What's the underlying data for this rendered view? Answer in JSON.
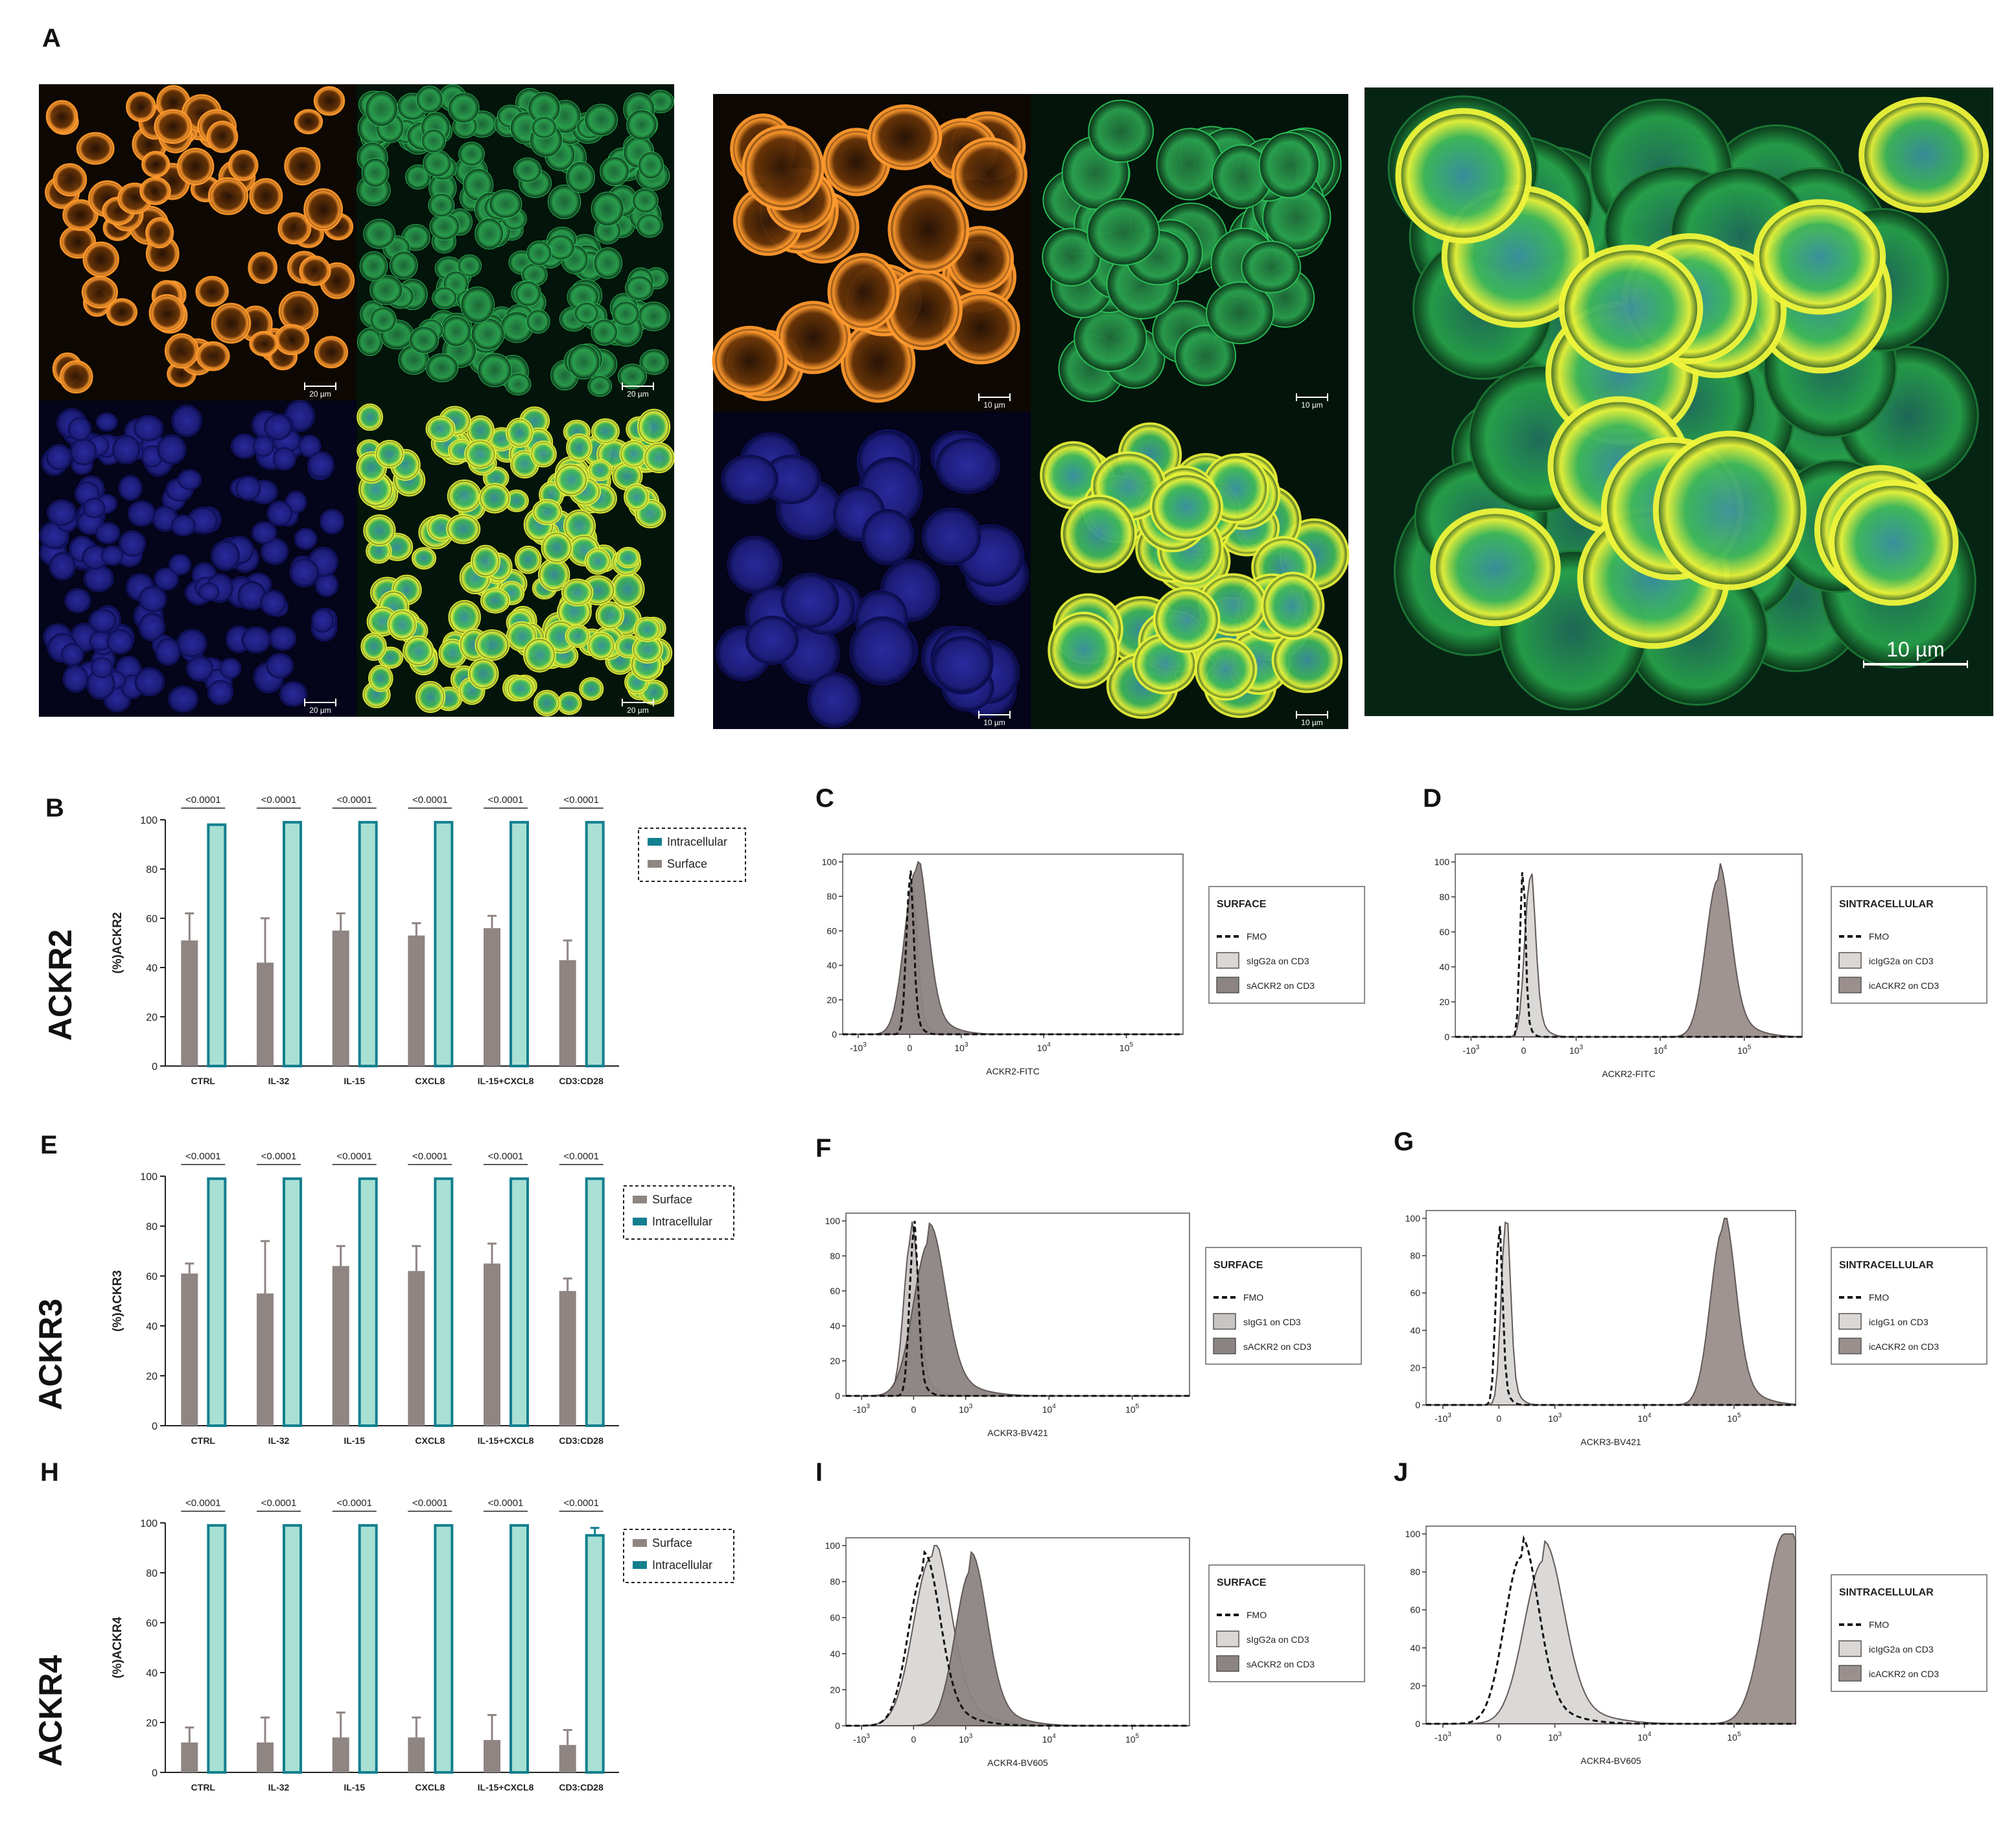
{
  "panel_a": {
    "label": "A",
    "scale_bars": {
      "group1": [
        "20 µm",
        "20 µm",
        "20 µm",
        "20 µm"
      ],
      "group2": [
        "10 µm",
        "10 µm",
        "10 µm",
        "10 µm"
      ],
      "zoom": "10 µm"
    }
  },
  "chart_data": [
    {
      "id": "B",
      "type": "bar",
      "row_label": "ACKR2",
      "ylabel": "(%)ACKR2",
      "categories": [
        "CTRL",
        "IL-32",
        "IL-15",
        "CXCL8",
        "IL-15+CXCL8",
        "CD3:CD28"
      ],
      "ylim": [
        0,
        100
      ],
      "yticks": [
        0,
        20,
        40,
        60,
        80,
        100
      ],
      "legend": [
        "Intracellular",
        "Surface"
      ],
      "series": [
        {
          "name": "Surface",
          "color": "#8f8583",
          "values": [
            51,
            42,
            55,
            53,
            56,
            43
          ],
          "errors": [
            11,
            18,
            7,
            5,
            5,
            8
          ]
        },
        {
          "name": "Intracellular",
          "color": "#a8e0d4",
          "edge": "#137f8f",
          "values": [
            98,
            99,
            99,
            99,
            99,
            99
          ],
          "errors": [
            0,
            0,
            0,
            0,
            0,
            0
          ]
        }
      ],
      "significance": [
        "<0.0001",
        "<0.0001",
        "<0.0001",
        "<0.0001",
        "<0.0001",
        "<0.0001"
      ]
    },
    {
      "id": "E",
      "type": "bar",
      "row_label": "ACKR3",
      "ylabel": "(%)ACKR3",
      "categories": [
        "CTRL",
        "IL-32",
        "IL-15",
        "CXCL8",
        "IL-15+CXCL8",
        "CD3:CD28"
      ],
      "ylim": [
        0,
        100
      ],
      "yticks": [
        0,
        20,
        40,
        60,
        80,
        100
      ],
      "legend": [
        "Surface",
        "Intracellular"
      ],
      "series": [
        {
          "name": "Surface",
          "color": "#8f8583",
          "values": [
            61,
            53,
            64,
            62,
            65,
            54
          ],
          "errors": [
            4,
            21,
            8,
            10,
            8,
            5
          ]
        },
        {
          "name": "Intracellular",
          "color": "#a8e0d4",
          "edge": "#137f8f",
          "values": [
            99,
            99,
            99,
            99,
            99,
            99
          ],
          "errors": [
            0,
            0,
            0,
            0,
            0,
            0
          ]
        }
      ],
      "significance": [
        "<0.0001",
        "<0.0001",
        "<0.0001",
        "<0.0001",
        "<0.0001",
        "<0.0001"
      ]
    },
    {
      "id": "H",
      "type": "bar",
      "row_label": "ACKR4",
      "ylabel": "(%)ACKR4",
      "categories": [
        "CTRL",
        "IL-32",
        "IL-15",
        "CXCL8",
        "IL-15+CXCL8",
        "CD3:CD28"
      ],
      "ylim": [
        0,
        100
      ],
      "yticks": [
        0,
        20,
        40,
        60,
        80,
        100
      ],
      "legend": [
        "Surface",
        "Intracellular"
      ],
      "series": [
        {
          "name": "Surface",
          "color": "#8f8583",
          "values": [
            12,
            12,
            14,
            14,
            13,
            11
          ],
          "errors": [
            6,
            10,
            10,
            8,
            10,
            6
          ]
        },
        {
          "name": "Intracellular",
          "color": "#a8e0d4",
          "edge": "#137f8f",
          "values": [
            99,
            99,
            99,
            99,
            99,
            95
          ],
          "errors": [
            0,
            0,
            0,
            0,
            0,
            3
          ]
        }
      ],
      "significance": [
        "<0.0001",
        "<0.0001",
        "<0.0001",
        "<0.0001",
        "<0.0001",
        "<0.0001"
      ]
    },
    {
      "id": "C",
      "type": "area",
      "xlabel": "ACKR2-FITC",
      "xticks": [
        "-10",
        "0",
        "10",
        "10",
        "10"
      ],
      "xtick_exp": [
        "3",
        "",
        "3",
        "4",
        "5"
      ],
      "yticks": [
        0,
        20,
        40,
        60,
        80,
        100
      ],
      "legend_title": "SURFACE",
      "series": [
        {
          "name": "FMO",
          "style": "dashed",
          "center": 0.0,
          "peak": 88,
          "width": 0.07
        },
        {
          "name": "sIgG2a on CD3",
          "fill": "#dad7d5",
          "center": 0.04,
          "peak": 78,
          "width": 0.1
        },
        {
          "name": "sACKR2 on CD3",
          "fill": "#8c8482",
          "center": 0.12,
          "peak": 95,
          "width": 0.22
        }
      ]
    },
    {
      "id": "D",
      "type": "area",
      "xlabel": "ACKR2-FITC",
      "xticks": [
        "-10",
        "0",
        "10",
        "10",
        "10"
      ],
      "xtick_exp": [
        "3",
        "",
        "3",
        "4",
        "5"
      ],
      "yticks": [
        0,
        20,
        40,
        60,
        80,
        100
      ],
      "legend_title": "SINTRACELLULAR",
      "series": [
        {
          "name": "FMO",
          "style": "dashed",
          "center": -0.02,
          "peak": 95,
          "width": 0.05
        },
        {
          "name": "icIgG2a on CD3",
          "fill": "#dad7d5",
          "center": 0.12,
          "peak": 90,
          "width": 0.1
        },
        {
          "name": "icACKR2 on CD3",
          "fill": "#9a8f8d",
          "center": 3.7,
          "peak": 90,
          "width": 0.23
        }
      ]
    },
    {
      "id": "F",
      "type": "area",
      "xlabel": "ACKR3-BV421",
      "xticks": [
        "-10",
        "0",
        "10",
        "10",
        "10"
      ],
      "xtick_exp": [
        "3",
        "",
        "3",
        "4",
        "5"
      ],
      "yticks": [
        0,
        20,
        40,
        60,
        80,
        100
      ],
      "legend_title": "SURFACE",
      "series": [
        {
          "name": "FMO",
          "style": "dashed",
          "center": 0.0,
          "peak": 92,
          "width": 0.08
        },
        {
          "name": "sIgG1 on CD3",
          "fill": "#c9c5c3",
          "center": -0.05,
          "peak": 90,
          "width": 0.14
        },
        {
          "name": "sACKR2 on CD3",
          "fill": "#8c8482",
          "center": 0.3,
          "peak": 88,
          "width": 0.3
        }
      ]
    },
    {
      "id": "G",
      "type": "area",
      "xlabel": "ACKR3-BV421",
      "xticks": [
        "-10",
        "0",
        "10",
        "10",
        "10"
      ],
      "xtick_exp": [
        "3",
        "",
        "3",
        "4",
        "5"
      ],
      "yticks": [
        0,
        20,
        40,
        60,
        80,
        100
      ],
      "legend_title": "SINTRACELLULAR",
      "series": [
        {
          "name": "FMO",
          "style": "dashed",
          "center": 0.0,
          "peak": 90,
          "width": 0.06
        },
        {
          "name": "icIgG1 on CD3",
          "fill": "#dad7d5",
          "center": 0.12,
          "peak": 98,
          "width": 0.08
        },
        {
          "name": "icACKR2 on CD3",
          "fill": "#9a8f8d",
          "center": 4.0,
          "peak": 94,
          "width": 0.22
        }
      ]
    },
    {
      "id": "I",
      "type": "area",
      "xlabel": "ACKR4-BV605",
      "xticks": [
        "-10",
        "0",
        "10",
        "10",
        "10"
      ],
      "xtick_exp": [
        "3",
        "",
        "3",
        "4",
        "5"
      ],
      "yticks": [
        0,
        20,
        40,
        60,
        80,
        100
      ],
      "legend_title": "SURFACE",
      "series": [
        {
          "name": "FMO",
          "style": "dashed",
          "center": 0.2,
          "peak": 86,
          "width": 0.3
        },
        {
          "name": "sIgG2a on CD3",
          "fill": "#dad7d5",
          "center": 0.35,
          "peak": 94,
          "width": 0.35
        },
        {
          "name": "sACKR2 on CD3",
          "fill": "#8c8482",
          "center": 1.1,
          "peak": 86,
          "width": 0.3
        }
      ]
    },
    {
      "id": "J",
      "type": "area",
      "xlabel": "ACKR4-BV605",
      "xticks": [
        "-10",
        "0",
        "10",
        "10",
        "10"
      ],
      "xtick_exp": [
        "3",
        "",
        "3",
        "4",
        "5"
      ],
      "yticks": [
        0,
        20,
        40,
        60,
        80,
        100
      ],
      "legend_title": "SINTRACELLULAR",
      "series": [
        {
          "name": "FMO",
          "style": "dashed",
          "center": 0.4,
          "peak": 88,
          "width": 0.3
        },
        {
          "name": "icIgG2a on CD3",
          "fill": "#dad7d5",
          "center": 0.8,
          "peak": 86,
          "width": 0.35
        },
        {
          "name": "icACKR2 on CD3",
          "fill": "#9a8f8d",
          "center": 5.1,
          "peak": 100,
          "width": 0.35
        }
      ]
    }
  ]
}
